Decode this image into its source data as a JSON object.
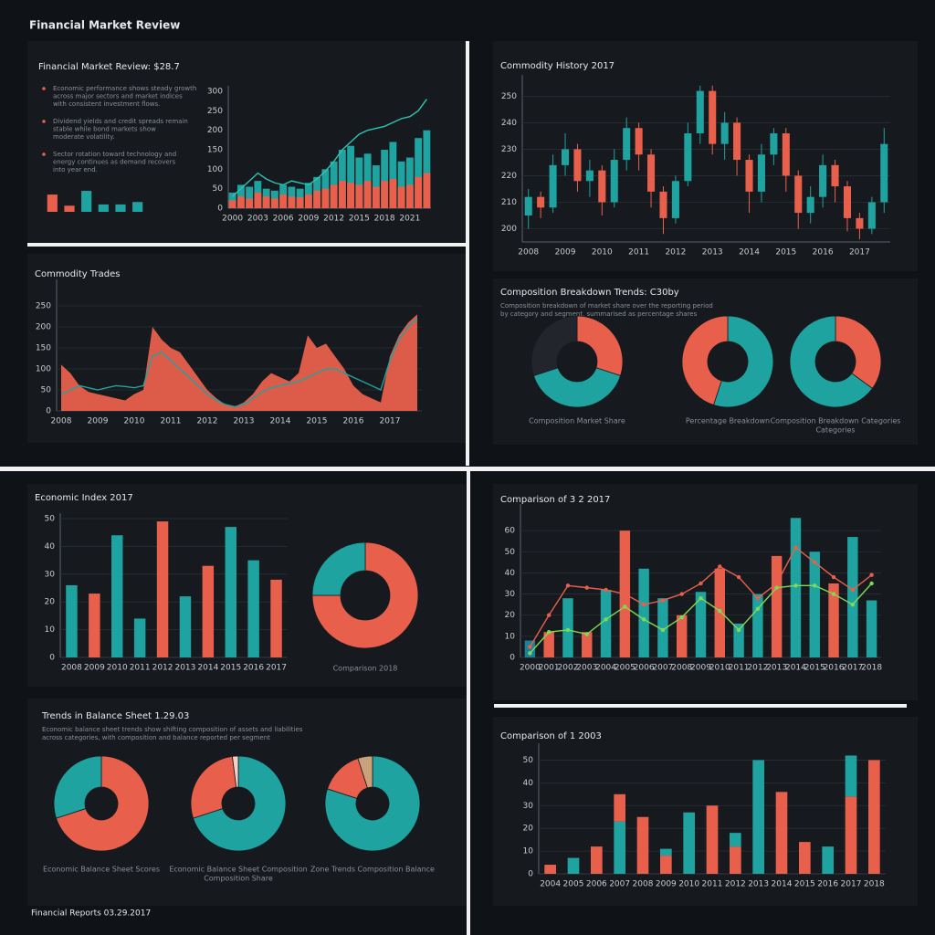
{
  "title": "Financial Market Review",
  "footer": "Financial Reports 03.29.2017",
  "chart_data": [
    {
      "type": "bar",
      "values": [
        14,
        5,
        17,
        6,
        6,
        8
      ],
      "colors": [
        "#e8604c",
        "#e8604c",
        "#1fa3a0",
        "#1fa3a0",
        "#1fa3a0",
        "#1fa3a0"
      ],
      "ylim": [
        0,
        20
      ]
    },
    {
      "type": "combo",
      "title": "Financial Market Review: $28.7",
      "annotations": [
        [
          "Economic performance shows steady growth",
          "across major sectors and market indices",
          "with consistent investment flows."
        ],
        [
          "Dividend yields and credit spreads remain",
          "stable while bond markets show",
          "moderate volatility."
        ],
        [
          "Sector rotation toward technology and",
          "energy continues as demand recovers",
          "into year end."
        ]
      ],
      "categories": [
        "2000",
        null,
        null,
        "2003",
        null,
        null,
        "2006",
        null,
        null,
        "2009",
        null,
        null,
        "2012",
        null,
        null,
        "2015",
        null,
        null,
        "2018",
        null,
        null,
        "2021",
        null,
        null
      ],
      "series": [
        {
          "kind": "bar",
          "color": "#1fa3a0",
          "values": [
            40,
            60,
            55,
            70,
            50,
            45,
            60,
            55,
            50,
            65,
            80,
            100,
            120,
            150,
            160,
            130,
            140,
            110,
            150,
            170,
            120,
            130,
            180,
            200
          ]
        },
        {
          "kind": "bar",
          "color": "#e8604c",
          "values": [
            20,
            30,
            25,
            40,
            30,
            25,
            35,
            30,
            28,
            35,
            45,
            50,
            60,
            70,
            65,
            60,
            70,
            55,
            70,
            75,
            55,
            60,
            80,
            90
          ]
        },
        {
          "kind": "line",
          "color": "#2ec4b0",
          "values": [
            30,
            50,
            70,
            90,
            75,
            65,
            60,
            70,
            65,
            60,
            75,
            95,
            120,
            150,
            170,
            190,
            200,
            205,
            210,
            220,
            230,
            235,
            250,
            280
          ]
        }
      ],
      "ylim": [
        0,
        300
      ],
      "yticks": [
        0,
        50,
        100,
        150,
        200,
        250,
        300
      ],
      "grid": false
    },
    {
      "type": "candlestick",
      "title": "Commodity History 2017",
      "categories": [
        "2008",
        null,
        null,
        "2009",
        null,
        null,
        "2010",
        null,
        null,
        "2011",
        null,
        null,
        "2012",
        null,
        null,
        "2013",
        null,
        null,
        "2014",
        null,
        null,
        "2015",
        null,
        null,
        "2016",
        null,
        null,
        "2017",
        null,
        null
      ],
      "open": [
        205,
        212,
        208,
        224,
        230,
        218,
        222,
        210,
        226,
        238,
        228,
        214,
        204,
        218,
        236,
        252,
        232,
        240,
        226,
        214,
        228,
        236,
        220,
        206,
        212,
        224,
        216,
        204,
        200,
        210
      ],
      "close": [
        212,
        208,
        224,
        230,
        218,
        222,
        210,
        226,
        238,
        228,
        214,
        204,
        218,
        236,
        252,
        232,
        240,
        226,
        214,
        228,
        236,
        220,
        206,
        212,
        224,
        216,
        204,
        200,
        210,
        232
      ],
      "high": [
        215,
        214,
        228,
        236,
        232,
        226,
        224,
        230,
        242,
        240,
        230,
        216,
        220,
        240,
        254,
        254,
        244,
        242,
        228,
        232,
        238,
        238,
        222,
        216,
        228,
        226,
        218,
        206,
        212,
        238
      ],
      "low": [
        200,
        204,
        206,
        220,
        214,
        212,
        205,
        208,
        222,
        222,
        208,
        198,
        202,
        216,
        232,
        228,
        226,
        220,
        206,
        210,
        224,
        214,
        200,
        202,
        208,
        210,
        199,
        196,
        198,
        206
      ],
      "up_color": "#1fa3a0",
      "down_color": "#e8604c",
      "ylim": [
        195,
        256
      ],
      "yticks": [
        200,
        210,
        220,
        230,
        240,
        250
      ],
      "grid": true
    },
    {
      "type": "combo",
      "title": "Commodity Trades",
      "categories": [
        "2008",
        null,
        null,
        null,
        "2009",
        null,
        null,
        null,
        "2010",
        null,
        null,
        null,
        "2011",
        null,
        null,
        null,
        "2012",
        null,
        null,
        null,
        "2013",
        null,
        null,
        null,
        "2014",
        null,
        null,
        null,
        "2015",
        null,
        null,
        null,
        "2016",
        null,
        null,
        null,
        "2017",
        null,
        null,
        null
      ],
      "series": [
        {
          "kind": "area",
          "color": "#e8604c",
          "values": [
            110,
            90,
            60,
            45,
            40,
            35,
            30,
            25,
            40,
            50,
            200,
            170,
            150,
            140,
            110,
            80,
            50,
            30,
            15,
            10,
            20,
            40,
            70,
            90,
            80,
            70,
            90,
            180,
            150,
            160,
            130,
            100,
            60,
            40,
            30,
            20,
            130,
            180,
            210,
            230
          ]
        },
        {
          "kind": "line",
          "color": "#1fa3a0",
          "values": [
            40,
            50,
            60,
            55,
            50,
            55,
            60,
            58,
            55,
            60,
            130,
            140,
            120,
            100,
            80,
            60,
            40,
            25,
            15,
            10,
            15,
            30,
            45,
            55,
            60,
            65,
            70,
            80,
            90,
            100,
            100,
            90,
            80,
            70,
            60,
            50,
            120,
            170,
            200,
            220
          ]
        }
      ],
      "ylim": [
        0,
        300
      ],
      "yticks": [
        0,
        50,
        100,
        150,
        200,
        250
      ],
      "grid": true
    },
    {
      "type": "donut_group",
      "title": "Composition Breakdown Trends: C30by",
      "subtitle": [
        "Composition breakdown of market share over the reporting period",
        "by category and segment, summarised as percentage shares"
      ],
      "donuts": [
        {
          "label": [
            "Composition Market Share"
          ],
          "values": [
            30,
            40,
            30
          ],
          "colors": [
            "#e8604c",
            "#1fa3a0",
            "#22262c"
          ]
        },
        {
          "label": [
            "Percentage Breakdown"
          ],
          "values": [
            55,
            45
          ],
          "colors": [
            "#1fa3a0",
            "#e8604c"
          ]
        },
        {
          "label": [
            "Composition Breakdown Categories",
            "Categories"
          ],
          "values": [
            35,
            65
          ],
          "colors": [
            "#e8604c",
            "#1fa3a0"
          ]
        }
      ]
    },
    {
      "type": "bar",
      "title": "Economic Index 2017",
      "categories": [
        "2008",
        "2009",
        "2010",
        "2011",
        "2012",
        "2013",
        "2014",
        "2015",
        "2016",
        "2017"
      ],
      "values": [
        26,
        23,
        44,
        14,
        49,
        22,
        33,
        47,
        35,
        28
      ],
      "colors": [
        "#1fa3a0",
        "#e8604c",
        "#1fa3a0",
        "#1fa3a0",
        "#e8604c",
        "#1fa3a0",
        "#e8604c",
        "#1fa3a0",
        "#1fa3a0",
        "#e8604c"
      ],
      "ylim": [
        0,
        50
      ],
      "yticks": [
        0,
        10,
        20,
        30,
        40,
        50
      ],
      "grid": true
    },
    {
      "type": "donut",
      "label": "Comparison 2018",
      "values": [
        75,
        25
      ],
      "colors": [
        "#e8604c",
        "#1fa3a0"
      ]
    },
    {
      "type": "donut_group",
      "title": "Trends in Balance Sheet 1.29.03",
      "subtitle": [
        "Economic balance sheet trends show shifting composition of assets and liabilities",
        "across categories, with composition and balance reported per segment"
      ],
      "donuts": [
        {
          "label": [
            "Economic Balance Sheet Scores"
          ],
          "values": [
            70,
            30
          ],
          "colors": [
            "#e8604c",
            "#1fa3a0"
          ]
        },
        {
          "label": [
            "Economic Balance Sheet Composition",
            "Composition Share"
          ],
          "values": [
            70,
            28,
            2
          ],
          "colors": [
            "#1fa3a0",
            "#e8604c",
            "#f2d0c8"
          ]
        },
        {
          "label": [
            "Zone Trends Composition Balance"
          ],
          "values": [
            80,
            15,
            5
          ],
          "colors": [
            "#1fa3a0",
            "#e8604c",
            "#c9a27a"
          ]
        }
      ]
    },
    {
      "type": "combo",
      "title": "Comparison of 3 2 2017",
      "categories": [
        "2000",
        "2001",
        "2002",
        "2003",
        "2004",
        "2005",
        "2006",
        "2007",
        "2008",
        "2009",
        "2010",
        "2011",
        "2012",
        "2013",
        "2014",
        "2015",
        "2016",
        "2017",
        "2018"
      ],
      "series": [
        {
          "kind": "bar",
          "colors": [
            "#1f7f96",
            "#e8604c",
            "#1fa3a0",
            "#e8604c",
            "#1fa3a0",
            "#e8604c",
            "#1fa3a0",
            "#1fa3a0",
            "#e8604c",
            "#1fa3a0",
            "#e8604c",
            "#1fa3a0",
            "#1fa3a0",
            "#e8604c",
            "#1fa3a0",
            "#1fa3a0",
            "#e8604c",
            "#1fa3a0",
            "#1fa3a0"
          ],
          "values": [
            8,
            12,
            28,
            12,
            32,
            60,
            42,
            28,
            20,
            31,
            42,
            16,
            30,
            48,
            66,
            50,
            35,
            57,
            27
          ]
        },
        {
          "kind": "line",
          "color": "#e8604c",
          "values": [
            5,
            20,
            34,
            33,
            32,
            30,
            25,
            27,
            30,
            35,
            43,
            38,
            28,
            35,
            52,
            45,
            38,
            32,
            39
          ]
        },
        {
          "kind": "line",
          "color": "#7ed957",
          "values": [
            2,
            12,
            13,
            11,
            18,
            24,
            18,
            13,
            19,
            28,
            22,
            13,
            23,
            33,
            34,
            34,
            30,
            25,
            35
          ]
        }
      ],
      "ylim": [
        0,
        70
      ],
      "yticks": [
        0,
        10,
        20,
        30,
        40,
        50,
        60
      ],
      "grid": true
    },
    {
      "type": "stacked_bar",
      "title": "Comparison of 1 2003",
      "categories": [
        "2004",
        "2005",
        "2006",
        "2007",
        "2008",
        "2009",
        "2010",
        "2011",
        "2012",
        "2013",
        "2014",
        "2015",
        "2016",
        "2017",
        "2018"
      ],
      "series": [
        {
          "values": [
            4,
            7,
            12,
            23,
            25,
            8,
            27,
            30,
            12,
            50,
            36,
            14,
            12,
            34,
            50
          ],
          "colors": [
            "#e8604c",
            "#1fa3a0",
            "#e8604c",
            "#1fa3a0",
            "#e8604c",
            "#e8604c",
            "#1fa3a0",
            "#e8604c",
            "#e8604c",
            "#1fa3a0",
            "#e8604c",
            "#e8604c",
            "#1fa3a0",
            "#e8604c",
            "#e8604c"
          ]
        },
        {
          "values": [
            0,
            0,
            0,
            12,
            0,
            3,
            0,
            0,
            6,
            0,
            0,
            0,
            0,
            18,
            0
          ],
          "colors": [
            "#1fa3a0",
            "#1fa3a0",
            "#1fa3a0",
            "#e8604c",
            "#1fa3a0",
            "#1fa3a0",
            "#1fa3a0",
            "#1fa3a0",
            "#1fa3a0",
            "#1fa3a0",
            "#1fa3a0",
            "#1fa3a0",
            "#1fa3a0",
            "#1fa3a0",
            "#1fa3a0"
          ]
        }
      ],
      "ylim": [
        0,
        55
      ],
      "yticks": [
        0,
        10,
        20,
        30,
        40,
        50
      ],
      "grid": true
    }
  ]
}
